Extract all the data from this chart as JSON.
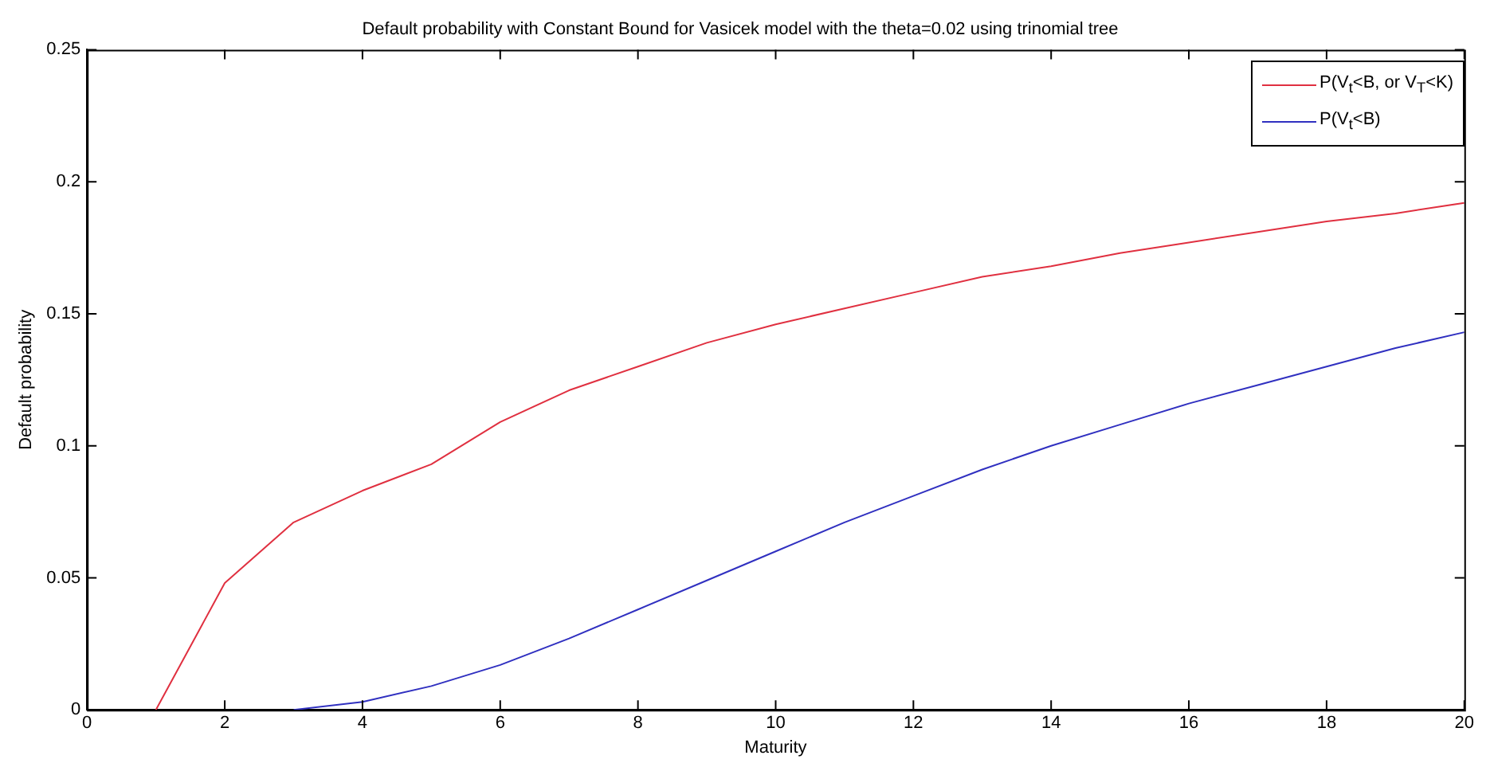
{
  "chart_data": {
    "type": "line",
    "title": "Default probability with Constant Bound for Vasicek model with the theta=0.02 using trinomial tree",
    "xlabel": "Maturity",
    "ylabel": "Default probability",
    "series": [
      {
        "name": "P(V$_{t}$<B, or V$_{T}$<K)",
        "color": "#e03040",
        "x": [
          1,
          2,
          3,
          4,
          5,
          6,
          7,
          8,
          9,
          10,
          11,
          12,
          13,
          14,
          15,
          16,
          17,
          18,
          19,
          20
        ],
        "values": [
          0,
          0.048,
          0.071,
          0.083,
          0.093,
          0.109,
          0.121,
          0.13,
          0.139,
          0.146,
          0.152,
          0.158,
          0.164,
          0.168,
          0.173,
          0.177,
          0.181,
          0.185,
          0.188,
          0.192
        ]
      },
      {
        "name": "P(V$_{t}$<B)",
        "color": "#3030c0",
        "x": [
          3,
          4,
          5,
          6,
          7,
          8,
          9,
          10,
          11,
          12,
          13,
          14,
          15,
          16,
          17,
          18,
          19,
          20
        ],
        "values": [
          0,
          0.003,
          0.009,
          0.017,
          0.027,
          0.038,
          0.049,
          0.06,
          0.071,
          0.081,
          0.091,
          0.1,
          0.108,
          0.116,
          0.123,
          0.13,
          0.137,
          0.143
        ]
      }
    ],
    "xlim": [
      0,
      20
    ],
    "xticks": [
      0,
      2,
      4,
      6,
      8,
      10,
      12,
      14,
      16,
      18,
      20
    ],
    "ylim": [
      0,
      0.25
    ],
    "yticks": [
      0,
      0.05,
      0.1,
      0.15,
      0.2,
      0.25
    ],
    "legend": "top right",
    "marker": "none",
    "line_style": "solid",
    "grid": false
  }
}
